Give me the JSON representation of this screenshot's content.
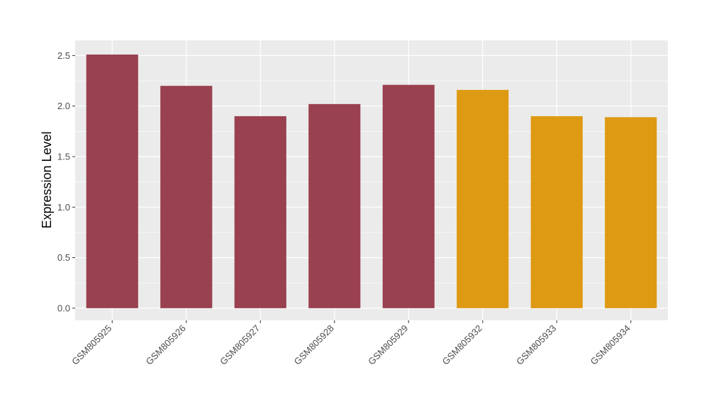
{
  "chart_data": {
    "type": "bar",
    "title": "",
    "xlabel": "",
    "ylabel": "Expression Level",
    "categories": [
      "GSM805925",
      "GSM805926",
      "GSM805927",
      "GSM805928",
      "GSM805929",
      "GSM805932",
      "GSM805933",
      "GSM805934"
    ],
    "values": [
      2.51,
      2.2,
      1.9,
      2.02,
      2.21,
      2.16,
      1.9,
      1.89
    ],
    "group_colors": [
      "#9a4150",
      "#9a4150",
      "#9a4150",
      "#9a4150",
      "#9a4150",
      "#de9a12",
      "#de9a12",
      "#de9a12"
    ],
    "ylim": [
      -0.12,
      2.65
    ],
    "yticks": [
      0.0,
      0.5,
      1.0,
      1.5,
      2.0,
      2.5
    ],
    "ytick_labels": [
      "0.0",
      "0.5",
      "1.0",
      "1.5",
      "2.0",
      "2.5"
    ],
    "grid": true,
    "legend": "none",
    "panel_background": "#ebebeb",
    "grid_color": "#ffffff"
  }
}
